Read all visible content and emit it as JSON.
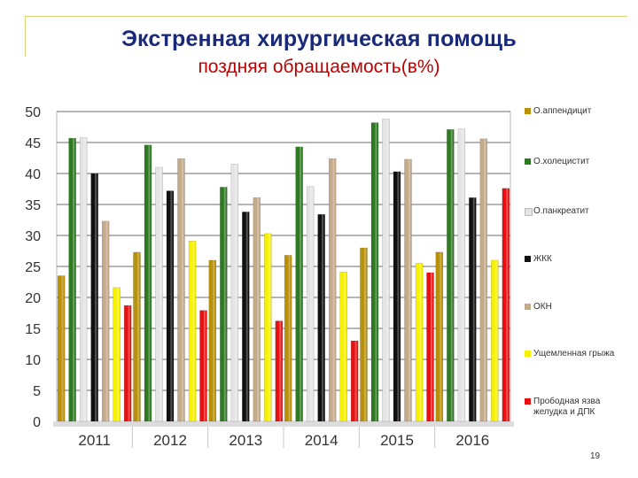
{
  "header": {
    "title": "Экстренная хирургическая помощь",
    "subtitle": "поздняя обращаемость(в%)"
  },
  "chart_data": {
    "type": "bar",
    "categories": [
      "2011",
      "2012",
      "2013",
      "2014",
      "2015",
      "2016"
    ],
    "yticks": [
      "0",
      "5",
      "10",
      "15",
      "20",
      "25",
      "30",
      "35",
      "40",
      "45",
      "50"
    ],
    "ylim": [
      0,
      50
    ],
    "grid": true,
    "legend_position": "right",
    "series": [
      {
        "name": "О.аппендицит",
        "color": "#b8900a",
        "values": [
          23.5,
          27.3,
          26.0,
          26.8,
          28.0,
          27.3
        ]
      },
      {
        "name": "О.холецистит",
        "color": "#2e7a22",
        "values": [
          45.7,
          44.6,
          37.8,
          44.3,
          48.2,
          47.1
        ]
      },
      {
        "name": "О.панкреатит",
        "color": "#e4e4e4",
        "values": [
          45.8,
          41.0,
          41.5,
          37.9,
          48.8,
          47.2
        ]
      },
      {
        "name": "ЖКК",
        "color": "#111111",
        "values": [
          40.0,
          37.2,
          33.8,
          33.4,
          40.3,
          36.1
        ]
      },
      {
        "name": "ОКН",
        "color": "#c4aa8a",
        "values": [
          32.3,
          42.4,
          36.1,
          42.4,
          42.3,
          45.6
        ]
      },
      {
        "name": "Ущемленная грыжа",
        "color": "#f7f100",
        "values": [
          21.6,
          29.1,
          30.3,
          24.1,
          25.5,
          26.0
        ]
      },
      {
        "name": "Прободная язва желудка и ДПК",
        "color": "#e81010",
        "values": [
          18.7,
          17.9,
          16.2,
          13.0,
          24.0,
          37.6
        ]
      }
    ]
  },
  "footer": {
    "page_number": "19"
  }
}
